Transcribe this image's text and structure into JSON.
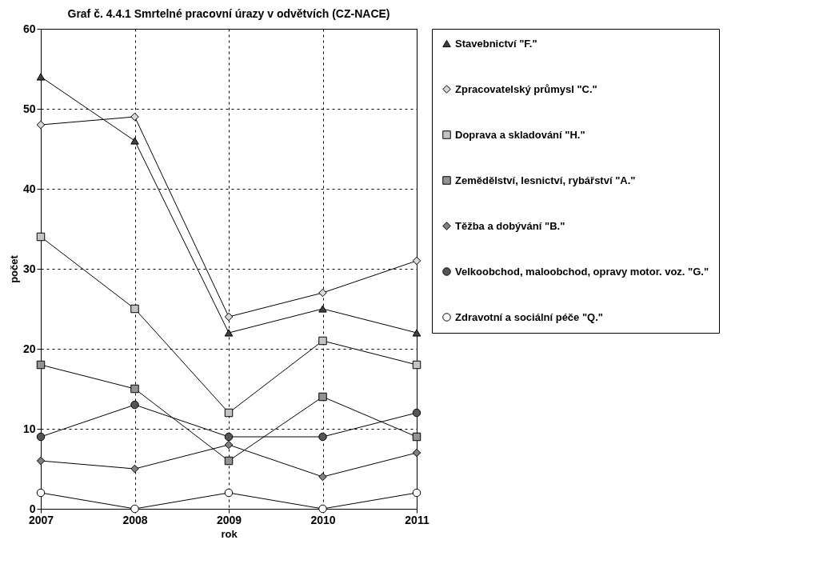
{
  "chart_data": {
    "type": "line",
    "title": "Graf č. 4.4.1  Smrtelné pracovní úrazy v odvětvích (CZ-NACE)",
    "xlabel": "rok",
    "ylabel": "počet",
    "x": [
      2007,
      2008,
      2009,
      2010,
      2011
    ],
    "xlim": [
      2007,
      2011
    ],
    "xticks": [
      2007,
      2008,
      2009,
      2010,
      2011
    ],
    "ylim": [
      0,
      60
    ],
    "yticks": [
      0,
      10,
      20,
      30,
      40,
      50,
      60
    ],
    "grid": true,
    "legend": "right",
    "series": [
      {
        "name": "Stavebnictví \"F.\"",
        "color": "#404040",
        "marker": "triangle",
        "values": [
          54,
          46,
          22,
          25,
          22
        ]
      },
      {
        "name": "Zpracovatelský průmysl \"C.\"",
        "color": "#d8d8d8",
        "marker": "diamond",
        "values": [
          48,
          49,
          24,
          27,
          31
        ]
      },
      {
        "name": "Doprava a skladování \"H.\"",
        "color": "#c4c4c4",
        "marker": "square",
        "values": [
          34,
          25,
          12,
          21,
          18
        ]
      },
      {
        "name": "Zemědělství, lesnictví, rybářství \"A.\"",
        "color": "#939393",
        "marker": "square",
        "values": [
          18,
          15,
          6,
          14,
          9
        ]
      },
      {
        "name": "Těžba a dobývání \"B.\"",
        "color": "#808080",
        "marker": "diamond",
        "values": [
          6,
          5,
          8,
          4,
          7
        ]
      },
      {
        "name": "Velkoobchod, maloobchod, opravy motor. voz. \"G.\"",
        "color": "#555555",
        "marker": "circle",
        "values": [
          9,
          13,
          9,
          9,
          12
        ]
      },
      {
        "name": "Zdravotní a sociální péče \"Q.\"",
        "color": "#ffffff",
        "marker": "circle",
        "values": [
          2,
          0,
          2,
          0,
          2
        ]
      }
    ]
  }
}
